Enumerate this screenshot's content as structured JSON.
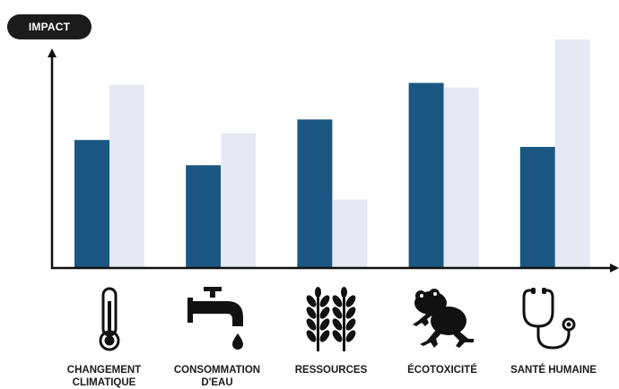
{
  "header": {
    "badge_label": "IMPACT"
  },
  "colors": {
    "series_a": "#1b5782",
    "series_b": "#e6e9f3",
    "axis": "#111111",
    "icon": "#111111"
  },
  "chart_data": {
    "type": "bar",
    "ylabel": "IMPACT",
    "categories": [
      "CHANGEMENT CLIMATIQUE",
      "CONSOMMATION D'EAU",
      "RESSOURCES",
      "ÉCOTOXICITÉ",
      "SANTÉ HUMAINE"
    ],
    "series": [
      {
        "values": [
          56,
          45,
          65,
          81,
          53
        ]
      },
      {
        "values": [
          80,
          59,
          30,
          79,
          100
        ]
      }
    ],
    "ylim": [
      0,
      100
    ],
    "grid": false
  },
  "icons": [
    "thermometer-icon",
    "faucet-icon",
    "wheat-icon",
    "frog-icon",
    "stethoscope-icon"
  ]
}
